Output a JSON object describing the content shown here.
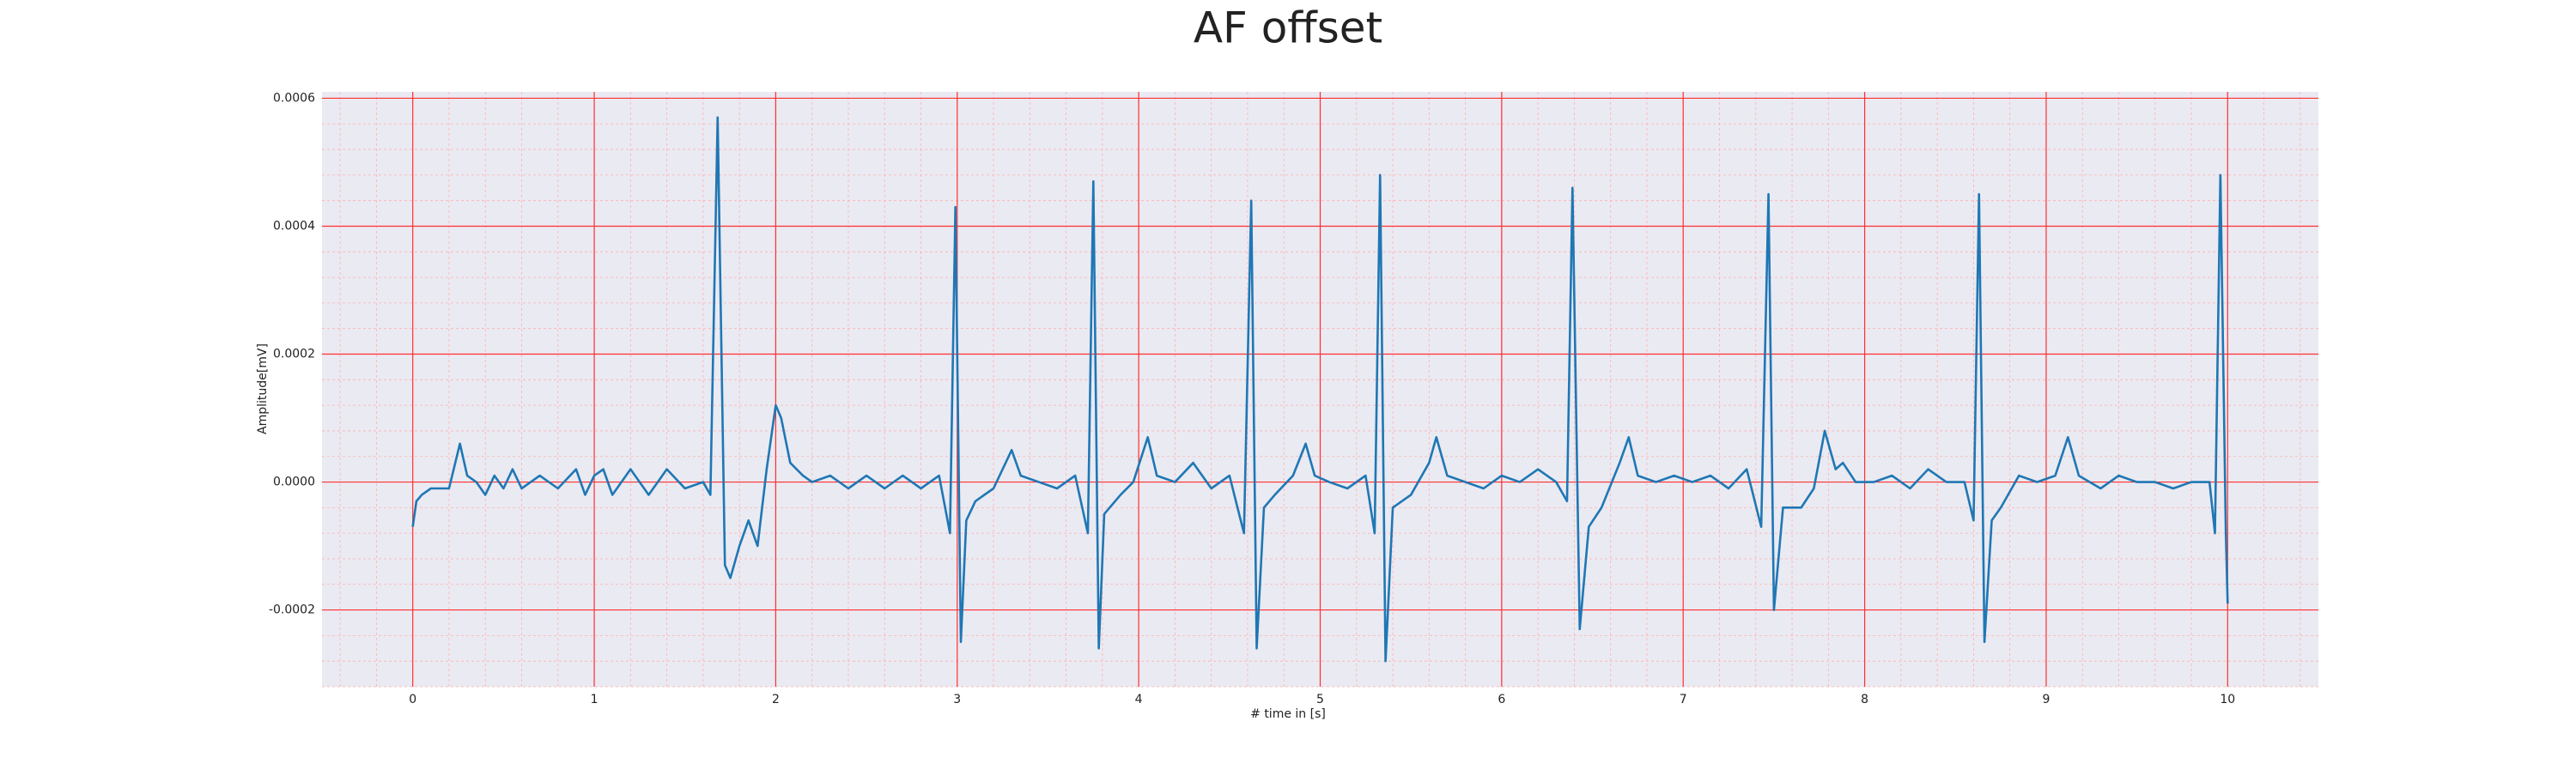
{
  "chart_data": {
    "type": "line",
    "title": "AF offset",
    "xlabel": "# time in [s]",
    "ylabel": "Amplitude[mV]",
    "xlim": [
      -0.5,
      10.5
    ],
    "ylim": [
      -0.00032,
      0.00061
    ],
    "xticks": [
      0,
      1,
      2,
      3,
      4,
      5,
      6,
      7,
      8,
      9,
      10
    ],
    "yticks": [
      -0.0002,
      {
        "value": 0,
        "label": "0.0000"
      },
      0.0002,
      0.0004,
      0.0006
    ],
    "grid": true,
    "series": [
      {
        "color": "#1f77b4",
        "x": [
          0,
          0.02,
          0.05,
          0.1,
          0.2,
          0.26,
          0.3,
          0.35,
          0.4,
          0.45,
          0.5,
          0.55,
          0.6,
          0.7,
          0.8,
          0.9,
          0.95,
          1.0,
          1.05,
          1.1,
          1.2,
          1.3,
          1.4,
          1.5,
          1.6,
          1.64,
          1.68,
          1.72,
          1.75,
          1.8,
          1.85,
          1.9,
          1.95,
          2.0,
          2.03,
          2.08,
          2.15,
          2.2,
          2.3,
          2.4,
          2.5,
          2.6,
          2.7,
          2.8,
          2.9,
          2.96,
          2.99,
          3.02,
          3.05,
          3.1,
          3.2,
          3.3,
          3.35,
          3.45,
          3.55,
          3.65,
          3.72,
          3.75,
          3.78,
          3.81,
          3.9,
          3.97,
          4.05,
          4.1,
          4.2,
          4.3,
          4.4,
          4.5,
          4.58,
          4.62,
          4.65,
          4.69,
          4.75,
          4.85,
          4.92,
          4.97,
          5.05,
          5.15,
          5.25,
          5.3,
          5.33,
          5.36,
          5.4,
          5.5,
          5.6,
          5.64,
          5.7,
          5.8,
          5.9,
          6.0,
          6.1,
          6.2,
          6.3,
          6.36,
          6.39,
          6.43,
          6.48,
          6.55,
          6.65,
          6.7,
          6.75,
          6.85,
          6.95,
          7.05,
          7.15,
          7.25,
          7.35,
          7.43,
          7.47,
          7.5,
          7.55,
          7.65,
          7.72,
          7.78,
          7.84,
          7.88,
          7.95,
          8.05,
          8.15,
          8.25,
          8.35,
          8.45,
          8.55,
          8.6,
          8.63,
          8.66,
          8.7,
          8.75,
          8.85,
          8.95,
          9.05,
          9.12,
          9.18,
          9.3,
          9.4,
          9.5,
          9.6,
          9.7,
          9.8,
          9.9,
          9.93,
          9.96,
          9.99,
          10.0
        ],
        "values": [
          -7e-05,
          -3e-05,
          -2e-05,
          -1e-05,
          -1e-05,
          6e-05,
          1e-05,
          0.0,
          -2e-05,
          1e-05,
          -1e-05,
          2e-05,
          -1e-05,
          1e-05,
          -1e-05,
          2e-05,
          -2e-05,
          1e-05,
          2e-05,
          -2e-05,
          2e-05,
          -2e-05,
          2e-05,
          -1e-05,
          0.0,
          -2e-05,
          0.00057,
          -0.00013,
          -0.00015,
          -0.0001,
          -6e-05,
          -0.0001,
          2e-05,
          0.00012,
          0.0001,
          3e-05,
          1e-05,
          0.0,
          1e-05,
          -1e-05,
          1e-05,
          -1e-05,
          1e-05,
          -1e-05,
          1e-05,
          -8e-05,
          0.00043,
          -0.00025,
          -6e-05,
          -3e-05,
          -1e-05,
          5e-05,
          1e-05,
          0.0,
          -1e-05,
          1e-05,
          -8e-05,
          0.00047,
          -0.00026,
          -5e-05,
          -2e-05,
          0.0,
          7e-05,
          1e-05,
          0.0,
          3e-05,
          -1e-05,
          1e-05,
          -8e-05,
          0.00044,
          -0.00026,
          -4e-05,
          -2e-05,
          1e-05,
          6e-05,
          1e-05,
          0.0,
          -1e-05,
          1e-05,
          -8e-05,
          0.00048,
          -0.00028,
          -4e-05,
          -2e-05,
          3e-05,
          7e-05,
          1e-05,
          0.0,
          -1e-05,
          1e-05,
          0.0,
          2e-05,
          0.0,
          -3e-05,
          0.00046,
          -0.00023,
          -7e-05,
          -4e-05,
          3e-05,
          7e-05,
          1e-05,
          0.0,
          1e-05,
          0.0,
          1e-05,
          -1e-05,
          2e-05,
          -7e-05,
          0.00045,
          -0.0002,
          -4e-05,
          -4e-05,
          -1e-05,
          8e-05,
          2e-05,
          3e-05,
          0.0,
          0.0,
          1e-05,
          -1e-05,
          2e-05,
          0.0,
          0.0,
          -6e-05,
          0.00045,
          -0.00025,
          -6e-05,
          -4e-05,
          1e-05,
          0.0,
          1e-05,
          7e-05,
          1e-05,
          -1e-05,
          1e-05,
          0.0,
          0.0,
          -1e-05,
          0.0,
          0.0,
          -8e-05,
          0.00048,
          -8e-05,
          -0.00019
        ]
      }
    ]
  }
}
